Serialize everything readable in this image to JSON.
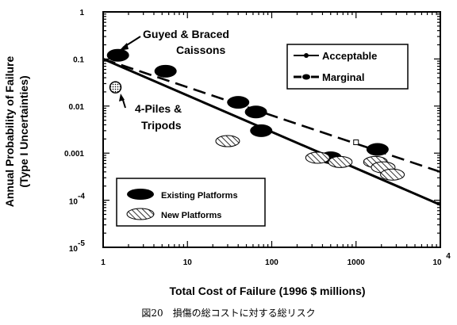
{
  "chart_data": {
    "type": "scatter",
    "xlabel": "Total Cost of Failure (1996 $ millions)",
    "ylabel_line1": "Annual Probability of Failure",
    "ylabel_line2": "(Type I Uncertainties)",
    "x_scale": "log",
    "y_scale": "log",
    "xlim": [
      1,
      10000
    ],
    "ylim": [
      1e-05,
      1
    ],
    "x_ticks": [
      {
        "value": 1,
        "label": "1"
      },
      {
        "value": 10,
        "label": "10"
      },
      {
        "value": 100,
        "label": "100"
      },
      {
        "value": 1000,
        "label": "1000"
      },
      {
        "value": 10000,
        "label": "10",
        "sup": "4"
      }
    ],
    "y_ticks": [
      {
        "value": 1,
        "label": "1"
      },
      {
        "value": 0.1,
        "label": "0.1"
      },
      {
        "value": 0.01,
        "label": "0.01"
      },
      {
        "value": 0.001,
        "label": "0.001"
      },
      {
        "value": 0.0001,
        "label": "10",
        "sup": "-4"
      },
      {
        "value": 1e-05,
        "label": "10",
        "sup": "-5"
      }
    ],
    "lines": [
      {
        "name": "Acceptable",
        "style": "solid",
        "points": [
          [
            1,
            0.1
          ],
          [
            10000,
            8e-05
          ]
        ]
      },
      {
        "name": "Marginal",
        "style": "dashed",
        "points": [
          [
            1,
            0.1
          ],
          [
            10000,
            0.0004
          ]
        ]
      }
    ],
    "series": [
      {
        "name": "Existing Platforms",
        "marker": "filled-ellipse",
        "points": [
          [
            1.5,
            0.12
          ],
          [
            5.5,
            0.055
          ],
          [
            40,
            0.012
          ],
          [
            65,
            0.0075
          ],
          [
            75,
            0.003
          ],
          [
            500,
            0.0008
          ],
          [
            1800,
            0.0012
          ]
        ]
      },
      {
        "name": "New Platforms",
        "marker": "hatched-ellipse",
        "points": [
          [
            30,
            0.0018
          ],
          [
            350,
            0.0008
          ],
          [
            650,
            0.00065
          ],
          [
            1700,
            0.00065
          ],
          [
            2100,
            0.0005
          ],
          [
            2700,
            0.00035
          ]
        ]
      },
      {
        "name": "4-Piles & Tripods",
        "marker": "dotted-circle",
        "points": [
          [
            1.4,
            0.025
          ]
        ]
      }
    ],
    "annotations": {
      "guyed_line1": "Guyed & Braced",
      "guyed_line2": "Caissons",
      "piles_line1": "4-Piles &",
      "piles_line2": "Tripods"
    },
    "legend_lines": {
      "placement": "top-right",
      "acceptable": "Acceptable",
      "marginal": "Marginal"
    },
    "legend_markers": {
      "placement": "bottom-left",
      "existing": "Existing Platforms",
      "new": "New Platforms"
    },
    "grid": false
  },
  "caption": "図20　損傷の総コストに対する総リスク"
}
